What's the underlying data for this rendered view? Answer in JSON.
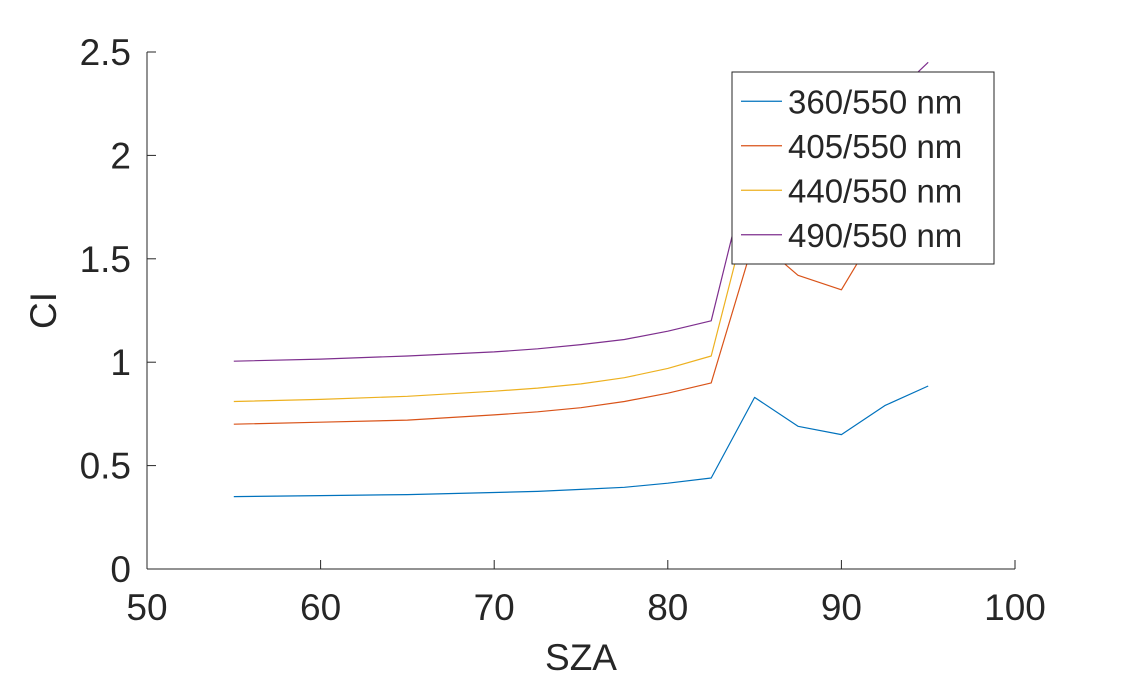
{
  "chart_data": {
    "type": "line",
    "xlabel": "SZA",
    "ylabel": "CI",
    "xlim": [
      50,
      100
    ],
    "ylim": [
      0,
      2.5
    ],
    "xticks": [
      50,
      60,
      70,
      80,
      90,
      100
    ],
    "xtick_labels": [
      "50",
      "60",
      "70",
      "80",
      "90",
      "100"
    ],
    "yticks": [
      0,
      0.5,
      1,
      1.5,
      2,
      2.5
    ],
    "ytick_labels": [
      "0",
      "0.5",
      "1",
      "1.5",
      "2",
      "2.5"
    ],
    "grid": false,
    "legend_position": "top-right",
    "x": [
      55,
      60,
      65,
      70,
      72.5,
      75,
      77.5,
      80,
      82.5,
      85,
      87.5,
      90,
      92.5,
      95
    ],
    "series": [
      {
        "name": "360/550 nm",
        "color": "#0072BD",
        "values": [
          0.35,
          0.355,
          0.36,
          0.37,
          0.375,
          0.385,
          0.395,
          0.415,
          0.44,
          0.83,
          0.69,
          0.65,
          0.79,
          0.885
        ]
      },
      {
        "name": "405/550 nm",
        "color": "#D95319",
        "values": [
          0.7,
          0.71,
          0.72,
          0.745,
          0.76,
          0.78,
          0.81,
          0.85,
          0.9,
          1.6,
          1.42,
          1.35,
          1.7,
          1.85
        ]
      },
      {
        "name": "440/550 nm",
        "color": "#EDB120",
        "values": [
          0.81,
          0.82,
          0.835,
          0.86,
          0.875,
          0.895,
          0.925,
          0.97,
          1.03,
          1.85,
          1.7,
          1.62,
          1.95,
          2.1
        ]
      },
      {
        "name": "490/550 nm",
        "color": "#7E2F8E",
        "values": [
          1.005,
          1.015,
          1.03,
          1.05,
          1.065,
          1.085,
          1.11,
          1.15,
          1.2,
          2.05,
          1.9,
          1.82,
          2.25,
          2.45
        ]
      }
    ]
  }
}
